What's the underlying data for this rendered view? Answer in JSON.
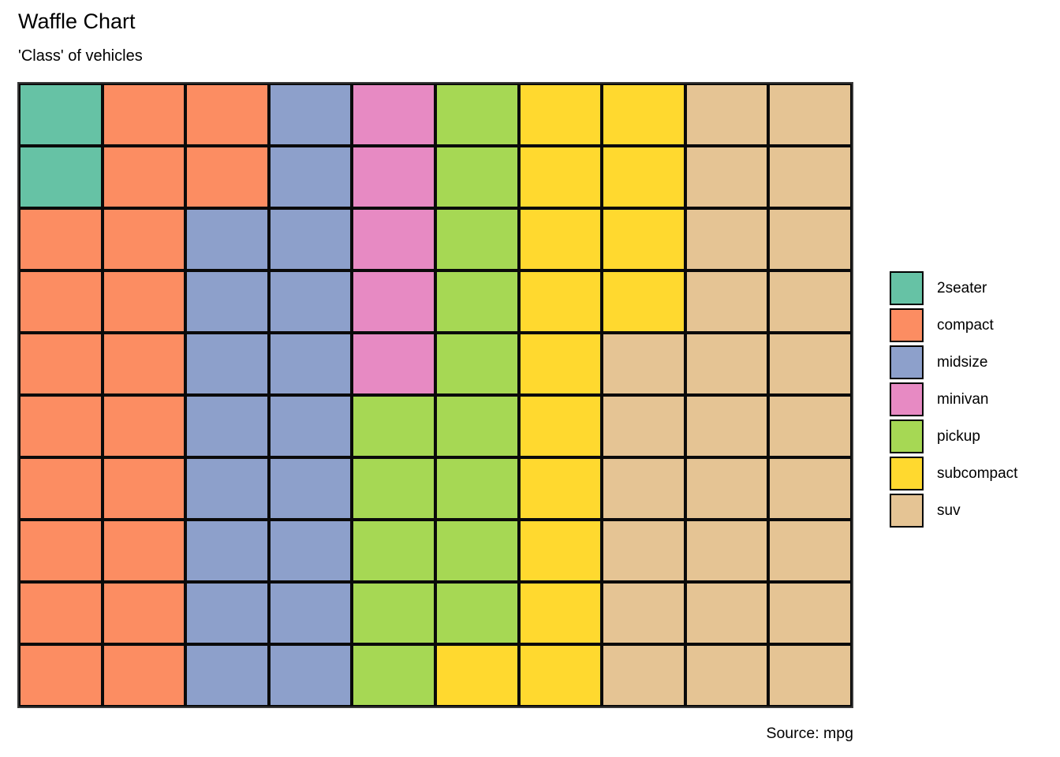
{
  "title": "Waffle Chart",
  "subtitle": "'Class' of vehicles",
  "source": "Source: mpg",
  "colors": {
    "background": "#FFFFFF",
    "cell_border": "#0A0A0A",
    "frame_border": "#3A3A3A",
    "text": "#000000"
  },
  "legend": {
    "position": "right"
  },
  "chart_data": {
    "type": "waffle",
    "title": "Waffle Chart",
    "subtitle": "'Class' of vehicles",
    "source": "Source: mpg",
    "grid": {
      "rows": 10,
      "cols": 10,
      "total_cells": 100,
      "fill_order": "column-major-top-down"
    },
    "categories": [
      {
        "id": "2seater",
        "label": "2seater",
        "color": "#66C2A5",
        "cells": 2
      },
      {
        "id": "compact",
        "label": "compact",
        "color": "#FC8D62",
        "cells": 20
      },
      {
        "id": "midsize",
        "label": "midsize",
        "color": "#8DA0CB",
        "cells": 18
      },
      {
        "id": "minivan",
        "label": "minivan",
        "color": "#E78AC3",
        "cells": 5
      },
      {
        "id": "pickup",
        "label": "pickup",
        "color": "#A6D854",
        "cells": 14
      },
      {
        "id": "subcompact",
        "label": "subcompact",
        "color": "#FFD92F",
        "cells": 15
      },
      {
        "id": "suv",
        "label": "suv",
        "color": "#E5C494",
        "cells": 26
      }
    ],
    "matrix": [
      [
        "2seater",
        "compact",
        "compact",
        "midsize",
        "minivan",
        "pickup",
        "subcompact",
        "subcompact",
        "suv",
        "suv"
      ],
      [
        "2seater",
        "compact",
        "compact",
        "midsize",
        "minivan",
        "pickup",
        "subcompact",
        "subcompact",
        "suv",
        "suv"
      ],
      [
        "compact",
        "compact",
        "midsize",
        "midsize",
        "minivan",
        "pickup",
        "subcompact",
        "subcompact",
        "suv",
        "suv"
      ],
      [
        "compact",
        "compact",
        "midsize",
        "midsize",
        "minivan",
        "pickup",
        "subcompact",
        "subcompact",
        "suv",
        "suv"
      ],
      [
        "compact",
        "compact",
        "midsize",
        "midsize",
        "minivan",
        "pickup",
        "subcompact",
        "suv",
        "suv",
        "suv"
      ],
      [
        "compact",
        "compact",
        "midsize",
        "midsize",
        "pickup",
        "pickup",
        "subcompact",
        "suv",
        "suv",
        "suv"
      ],
      [
        "compact",
        "compact",
        "midsize",
        "midsize",
        "pickup",
        "pickup",
        "subcompact",
        "suv",
        "suv",
        "suv"
      ],
      [
        "compact",
        "compact",
        "midsize",
        "midsize",
        "pickup",
        "pickup",
        "subcompact",
        "suv",
        "suv",
        "suv"
      ],
      [
        "compact",
        "compact",
        "midsize",
        "midsize",
        "pickup",
        "pickup",
        "subcompact",
        "suv",
        "suv",
        "suv"
      ],
      [
        "compact",
        "compact",
        "midsize",
        "midsize",
        "pickup",
        "subcompact",
        "subcompact",
        "suv",
        "suv",
        "suv"
      ]
    ]
  }
}
